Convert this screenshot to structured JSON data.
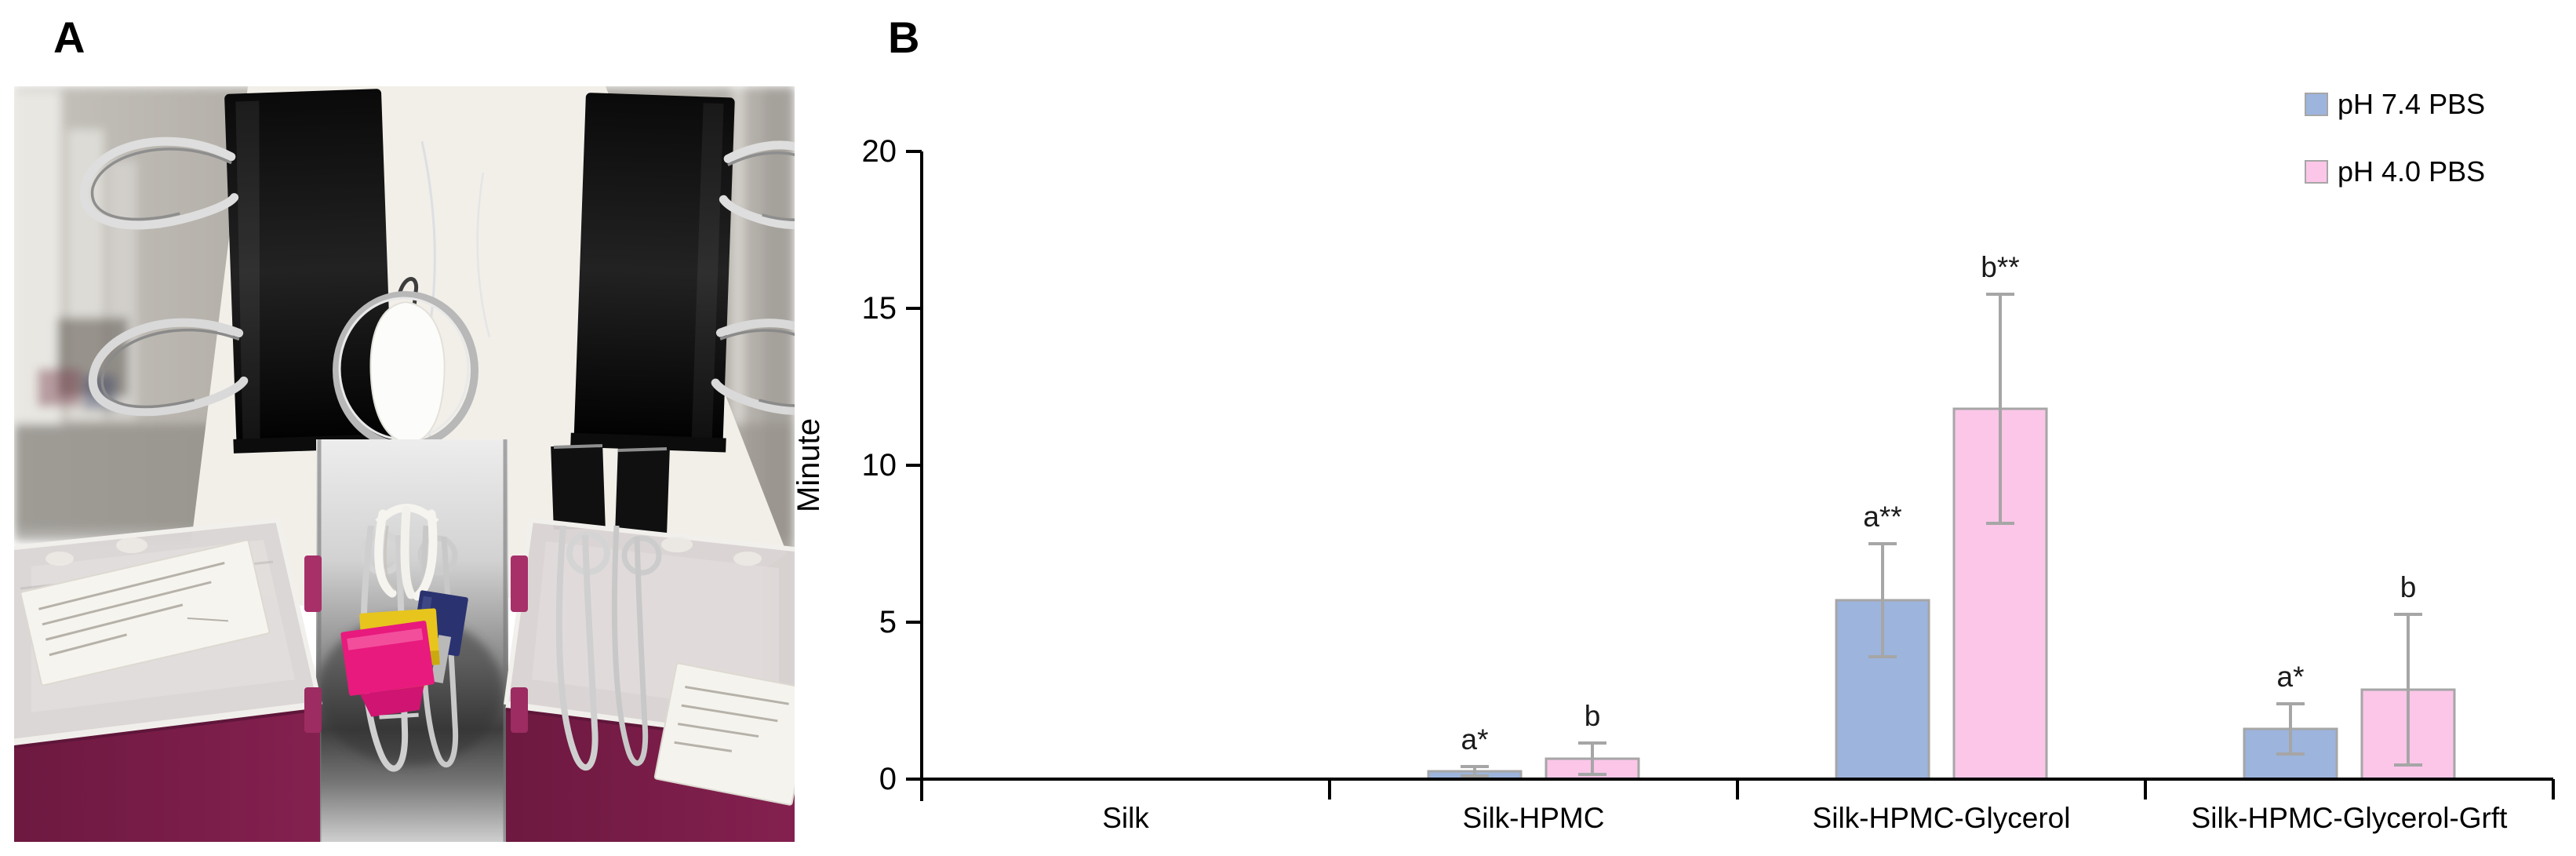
{
  "panels": {
    "a": {
      "label": "A"
    },
    "b": {
      "label": "B"
    }
  },
  "photo": {
    "description_parts": {
      "silk_film": "white silk film sheet",
      "large_clips": "black binder clips",
      "metal_ring": "metal ring with white adhesive plug",
      "reservoirs": "magenta pipette-tip boxes with clear lids",
      "hanging_clips": "yellow, magenta and navy mini binder clips"
    }
  },
  "chart_data": {
    "type": "bar",
    "title": "",
    "xlabel": "",
    "ylabel": "Minute",
    "ylim": [
      0,
      20
    ],
    "yticks": [
      0,
      5,
      10,
      15,
      20
    ],
    "grid": false,
    "legend_position": "top-right",
    "bar_border_color": "#a6a6a6",
    "error_bar_color": "#a6a6a6",
    "axis_color": "#000000",
    "categories": [
      "Silk",
      "Silk-HPMC",
      "Silk-HPMC-Glycerol",
      "Silk-HPMC-Glycerol-Grft"
    ],
    "series": [
      {
        "name": "pH 7.4 PBS",
        "color": "#9db4dd",
        "values": [
          0,
          0.25,
          5.7,
          1.6
        ],
        "errors": [
          0,
          0.15,
          1.8,
          0.8
        ],
        "annotations": [
          "",
          "a*",
          "a**",
          "a*"
        ]
      },
      {
        "name": "pH 4.0 PBS",
        "color": "#fbc6e8",
        "values": [
          0,
          0.65,
          11.8,
          2.85
        ],
        "errors": [
          0,
          0.5,
          3.65,
          2.4
        ],
        "annotations": [
          "",
          "b",
          "b**",
          "b"
        ]
      }
    ]
  }
}
